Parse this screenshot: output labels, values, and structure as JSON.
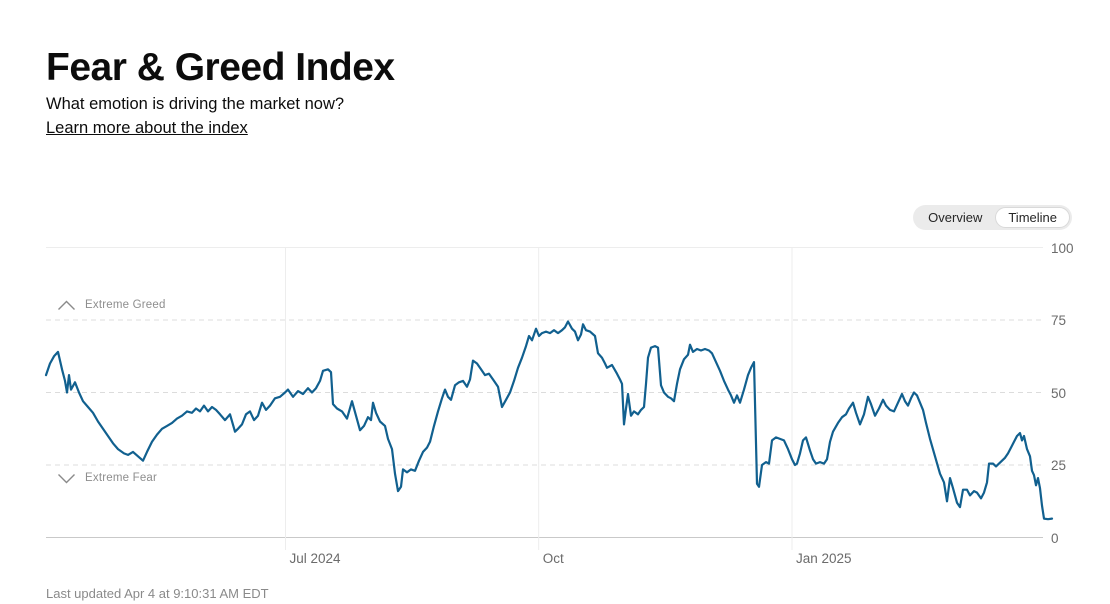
{
  "header": {
    "title": "Fear & Greed Index",
    "subtitle": "What emotion is driving the market now?",
    "link": "Learn more about the index"
  },
  "toggle": {
    "options": [
      {
        "label": "Overview",
        "selected": false
      },
      {
        "label": "Timeline",
        "selected": true
      }
    ]
  },
  "footer": {
    "last_updated": "Last updated Apr 4 at 9:10:31 AM EDT"
  },
  "colors": {
    "line": "#11608f",
    "grid_dashed": "#dcdcdc",
    "grid_solid_top": "#ededed",
    "axis_bottom": "#c9c9c9",
    "grid_vertical": "#ededed",
    "tick_text": "#6b6b6b",
    "annotation_text": "#8e8e8e"
  },
  "chart_data": {
    "type": "line",
    "title": "Fear & Greed Index timeline",
    "x_range_dates": [
      "Apr 2024",
      "Apr 4, 2025"
    ],
    "x_unit": "px_from_plot_left (0-1006 spans Apr 2024 - Apr 2025)",
    "ylim": [
      0,
      100
    ],
    "y_ticks": [
      0,
      25,
      50,
      75,
      100
    ],
    "x_ticks": [
      {
        "x": 239.5,
        "label": "Jul 2024"
      },
      {
        "x": 492.7,
        "label": "Oct"
      },
      {
        "x": 746.0,
        "label": "Jan 2025"
      }
    ],
    "grid": "horizontal dashed at 25/50/75, solid at 0/100, vertical at month ticks",
    "legend_position": "none",
    "annotations": [
      {
        "label": "Extreme Greed",
        "icon": "chevron-up",
        "y": 75,
        "side": "above"
      },
      {
        "label": "Extreme Fear",
        "icon": "chevron-down",
        "y": 25,
        "side": "below"
      }
    ],
    "series": [
      {
        "name": "Fear & Greed Index",
        "points": [
          [
            0,
            56
          ],
          [
            4,
            60
          ],
          [
            8,
            62.5
          ],
          [
            12,
            64
          ],
          [
            16,
            58
          ],
          [
            19,
            54
          ],
          [
            21,
            50
          ],
          [
            23,
            56
          ],
          [
            25,
            51
          ],
          [
            29,
            53.5
          ],
          [
            33,
            50
          ],
          [
            37,
            47
          ],
          [
            42,
            45
          ],
          [
            47,
            43
          ],
          [
            52,
            40
          ],
          [
            57,
            37.5
          ],
          [
            62,
            35
          ],
          [
            67,
            32.5
          ],
          [
            72,
            30.5
          ],
          [
            78,
            29
          ],
          [
            82,
            28.5
          ],
          [
            87,
            29.5
          ],
          [
            92,
            28
          ],
          [
            97,
            26.5
          ],
          [
            101,
            29.5
          ],
          [
            106,
            33
          ],
          [
            111,
            35.5
          ],
          [
            116,
            37.5
          ],
          [
            121,
            38.5
          ],
          [
            126,
            39.5
          ],
          [
            131,
            41
          ],
          [
            136,
            42
          ],
          [
            141,
            43.5
          ],
          [
            146,
            43
          ],
          [
            150,
            44.5
          ],
          [
            154,
            43.5
          ],
          [
            158,
            45.5
          ],
          [
            162,
            43.5
          ],
          [
            166,
            45
          ],
          [
            170,
            44
          ],
          [
            174,
            42.5
          ],
          [
            179,
            40.5
          ],
          [
            184,
            42.5
          ],
          [
            189,
            36.5
          ],
          [
            192,
            37.5
          ],
          [
            196,
            39
          ],
          [
            200,
            42.5
          ],
          [
            204,
            43.5
          ],
          [
            208,
            40.5
          ],
          [
            212,
            42
          ],
          [
            216,
            46.5
          ],
          [
            220,
            44
          ],
          [
            224,
            45.5
          ],
          [
            229,
            48
          ],
          [
            234,
            48.5
          ],
          [
            239,
            50
          ],
          [
            242,
            51
          ],
          [
            247,
            48.5
          ],
          [
            252,
            50.5
          ],
          [
            257,
            49.5
          ],
          [
            262,
            51.5
          ],
          [
            266,
            50
          ],
          [
            270,
            51.5
          ],
          [
            274,
            54
          ],
          [
            277,
            57.5
          ],
          [
            282,
            58
          ],
          [
            285,
            57
          ],
          [
            287,
            46
          ],
          [
            291,
            44.5
          ],
          [
            296,
            43.5
          ],
          [
            301,
            41
          ],
          [
            306,
            47
          ],
          [
            310,
            42
          ],
          [
            314,
            37
          ],
          [
            318,
            38.5
          ],
          [
            322,
            41.5
          ],
          [
            325,
            40.5
          ],
          [
            327,
            46.5
          ],
          [
            330,
            43
          ],
          [
            334,
            40
          ],
          [
            339,
            38.5
          ],
          [
            342,
            34
          ],
          [
            346,
            30.5
          ],
          [
            349,
            22
          ],
          [
            352,
            16
          ],
          [
            355,
            17.5
          ],
          [
            357,
            23.5
          ],
          [
            361,
            22.5
          ],
          [
            365,
            23.5
          ],
          [
            369,
            23
          ],
          [
            373,
            26.5
          ],
          [
            377,
            29.5
          ],
          [
            381,
            31
          ],
          [
            384,
            33
          ],
          [
            388,
            38.5
          ],
          [
            392,
            43.5
          ],
          [
            396,
            48
          ],
          [
            399,
            51
          ],
          [
            402,
            48.5
          ],
          [
            405,
            47.5
          ],
          [
            409,
            52.5
          ],
          [
            413,
            53.5
          ],
          [
            417,
            54
          ],
          [
            421,
            52
          ],
          [
            424,
            54.5
          ],
          [
            427,
            61
          ],
          [
            431,
            60
          ],
          [
            435,
            58
          ],
          [
            439,
            56
          ],
          [
            443,
            56.5
          ],
          [
            448,
            54
          ],
          [
            452,
            52
          ],
          [
            456,
            45
          ],
          [
            460,
            47.5
          ],
          [
            464,
            50
          ],
          [
            468,
            54
          ],
          [
            472,
            58.5
          ],
          [
            476,
            62
          ],
          [
            480,
            66
          ],
          [
            483,
            69.5
          ],
          [
            486,
            68
          ],
          [
            490,
            72
          ],
          [
            493,
            69.5
          ],
          [
            496,
            70.5
          ],
          [
            500,
            71
          ],
          [
            504,
            70.5
          ],
          [
            508,
            71.5
          ],
          [
            512,
            70.5
          ],
          [
            516,
            71.5
          ],
          [
            519,
            72.5
          ],
          [
            522,
            74.5
          ],
          [
            526,
            72
          ],
          [
            529,
            71
          ],
          [
            532,
            68
          ],
          [
            535,
            70
          ],
          [
            537,
            73.5
          ],
          [
            540,
            71.5
          ],
          [
            544,
            71
          ],
          [
            549,
            69.5
          ],
          [
            552,
            63.5
          ],
          [
            556,
            62
          ],
          [
            559,
            60
          ],
          [
            561,
            58.5
          ],
          [
            566,
            59.5
          ],
          [
            571,
            56.5
          ],
          [
            574,
            54.5
          ],
          [
            576,
            53
          ],
          [
            578,
            39
          ],
          [
            580,
            44.5
          ],
          [
            582,
            49.5
          ],
          [
            585,
            42
          ],
          [
            588,
            43.5
          ],
          [
            592,
            42.5
          ],
          [
            595,
            44
          ],
          [
            598,
            45
          ],
          [
            600,
            53
          ],
          [
            602,
            62
          ],
          [
            605,
            65.5
          ],
          [
            609,
            66
          ],
          [
            612,
            65.5
          ],
          [
            615,
            52.5
          ],
          [
            618,
            50
          ],
          [
            622,
            48.5
          ],
          [
            625,
            48
          ],
          [
            628,
            47
          ],
          [
            631,
            53
          ],
          [
            634,
            58
          ],
          [
            638,
            61.5
          ],
          [
            642,
            63
          ],
          [
            644,
            66.5
          ],
          [
            647,
            64
          ],
          [
            651,
            65
          ],
          [
            655,
            64.5
          ],
          [
            659,
            65
          ],
          [
            663,
            64.5
          ],
          [
            666,
            63.5
          ],
          [
            670,
            60.5
          ],
          [
            674,
            57.5
          ],
          [
            678,
            54
          ],
          [
            682,
            51
          ],
          [
            685,
            49
          ],
          [
            688,
            46.5
          ],
          [
            691,
            49
          ],
          [
            694,
            46.5
          ],
          [
            698,
            51
          ],
          [
            702,
            56
          ],
          [
            705,
            58.5
          ],
          [
            708,
            60.5
          ],
          [
            711,
            18.5
          ],
          [
            713,
            17.5
          ],
          [
            716,
            25
          ],
          [
            720,
            26
          ],
          [
            723,
            25.5
          ],
          [
            726,
            33.5
          ],
          [
            730,
            34.5
          ],
          [
            734,
            34
          ],
          [
            738,
            33.5
          ],
          [
            742,
            30.5
          ],
          [
            746,
            27
          ],
          [
            749,
            25
          ],
          [
            751,
            25.5
          ],
          [
            754,
            29
          ],
          [
            757,
            33.5
          ],
          [
            760,
            34.5
          ],
          [
            764,
            30
          ],
          [
            767,
            27
          ],
          [
            770,
            25.5
          ],
          [
            774,
            26
          ],
          [
            778,
            25.5
          ],
          [
            781,
            27
          ],
          [
            784,
            33
          ],
          [
            787,
            36.5
          ],
          [
            792,
            39.5
          ],
          [
            796,
            41.5
          ],
          [
            800,
            42.5
          ],
          [
            803,
            44.5
          ],
          [
            807,
            46.5
          ],
          [
            810,
            43
          ],
          [
            814,
            39
          ],
          [
            818,
            42.5
          ],
          [
            822,
            48.5
          ],
          [
            825,
            46
          ],
          [
            829,
            42
          ],
          [
            833,
            44.5
          ],
          [
            837,
            47.5
          ],
          [
            840,
            45.5
          ],
          [
            844,
            44
          ],
          [
            848,
            43.5
          ],
          [
            852,
            46.5
          ],
          [
            856,
            49.5
          ],
          [
            859,
            47
          ],
          [
            862,
            45.5
          ],
          [
            865,
            48
          ],
          [
            868,
            50
          ],
          [
            871,
            49
          ],
          [
            874,
            46.5
          ],
          [
            877,
            44
          ],
          [
            880,
            39.5
          ],
          [
            884,
            34
          ],
          [
            889,
            28
          ],
          [
            894,
            22
          ],
          [
            898,
            19
          ],
          [
            901,
            12.5
          ],
          [
            904,
            20.5
          ],
          [
            907,
            17
          ],
          [
            911,
            12
          ],
          [
            914,
            10.5
          ],
          [
            917,
            16.5
          ],
          [
            921,
            16.5
          ],
          [
            924,
            14.5
          ],
          [
            928,
            16
          ],
          [
            931,
            15.5
          ],
          [
            935,
            13.5
          ],
          [
            938,
            15.5
          ],
          [
            941,
            19
          ],
          [
            943,
            25.5
          ],
          [
            947,
            25.5
          ],
          [
            950,
            24.5
          ],
          [
            953,
            25.5
          ],
          [
            956,
            26.5
          ],
          [
            959,
            27.5
          ],
          [
            962,
            29
          ],
          [
            965,
            31
          ],
          [
            968,
            33
          ],
          [
            971,
            35
          ],
          [
            974,
            36
          ],
          [
            976,
            33.5
          ],
          [
            978,
            35
          ],
          [
            981,
            30.5
          ],
          [
            984,
            28
          ],
          [
            986,
            23
          ],
          [
            988,
            21.5
          ],
          [
            990,
            18
          ],
          [
            992,
            20.5
          ],
          [
            994,
            17
          ],
          [
            996,
            11
          ],
          [
            998,
            6.5
          ],
          [
            1002,
            6.3
          ],
          [
            1006,
            6.5
          ]
        ]
      }
    ]
  }
}
